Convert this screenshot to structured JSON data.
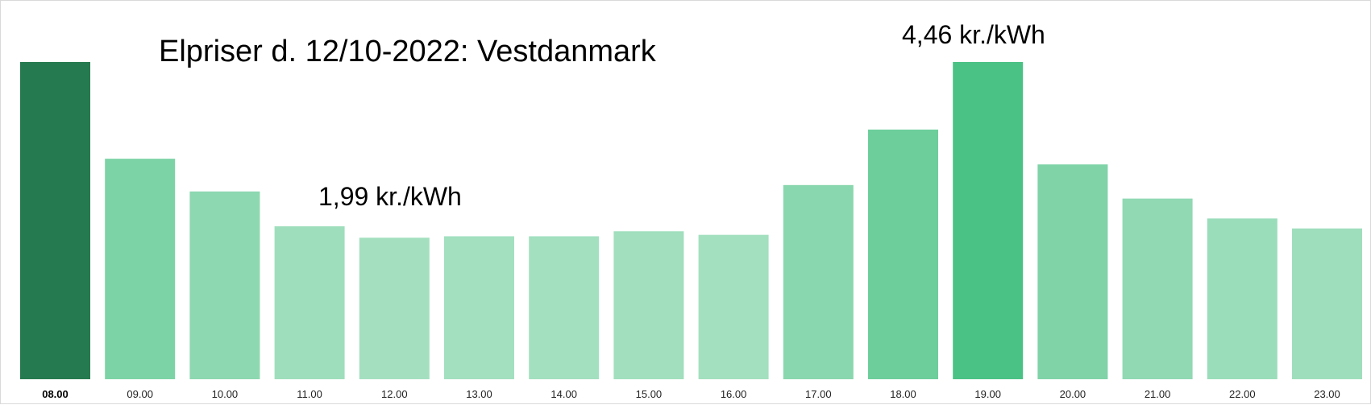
{
  "chart_data": {
    "type": "bar",
    "title": "Elpriser d. 12/10-2022: Vestdanmark",
    "xlabel": "",
    "ylabel": "",
    "unit": "kr./kWh",
    "categories": [
      "08.00",
      "09.00",
      "10.00",
      "11.00",
      "12.00",
      "13.00",
      "14.00",
      "15.00",
      "16.00",
      "17.00",
      "18.00",
      "19.00",
      "20.00",
      "21.00",
      "22.00",
      "23.00"
    ],
    "values": [
      4.46,
      3.1,
      2.64,
      2.15,
      1.99,
      2.01,
      2.01,
      2.08,
      2.03,
      2.73,
      3.51,
      4.46,
      3.02,
      2.54,
      2.26,
      2.12
    ],
    "ylim": [
      0,
      4.46
    ],
    "grid": false,
    "selected_category": "08.00",
    "annotations": [
      "4,46 kr./kWh",
      "1,99 kr./kWh"
    ],
    "colors": {
      "selected": "#267a4f",
      "peak": "#4bc285",
      "scale_low": "#a4e0c0",
      "scale_high": "#4bc285"
    }
  }
}
